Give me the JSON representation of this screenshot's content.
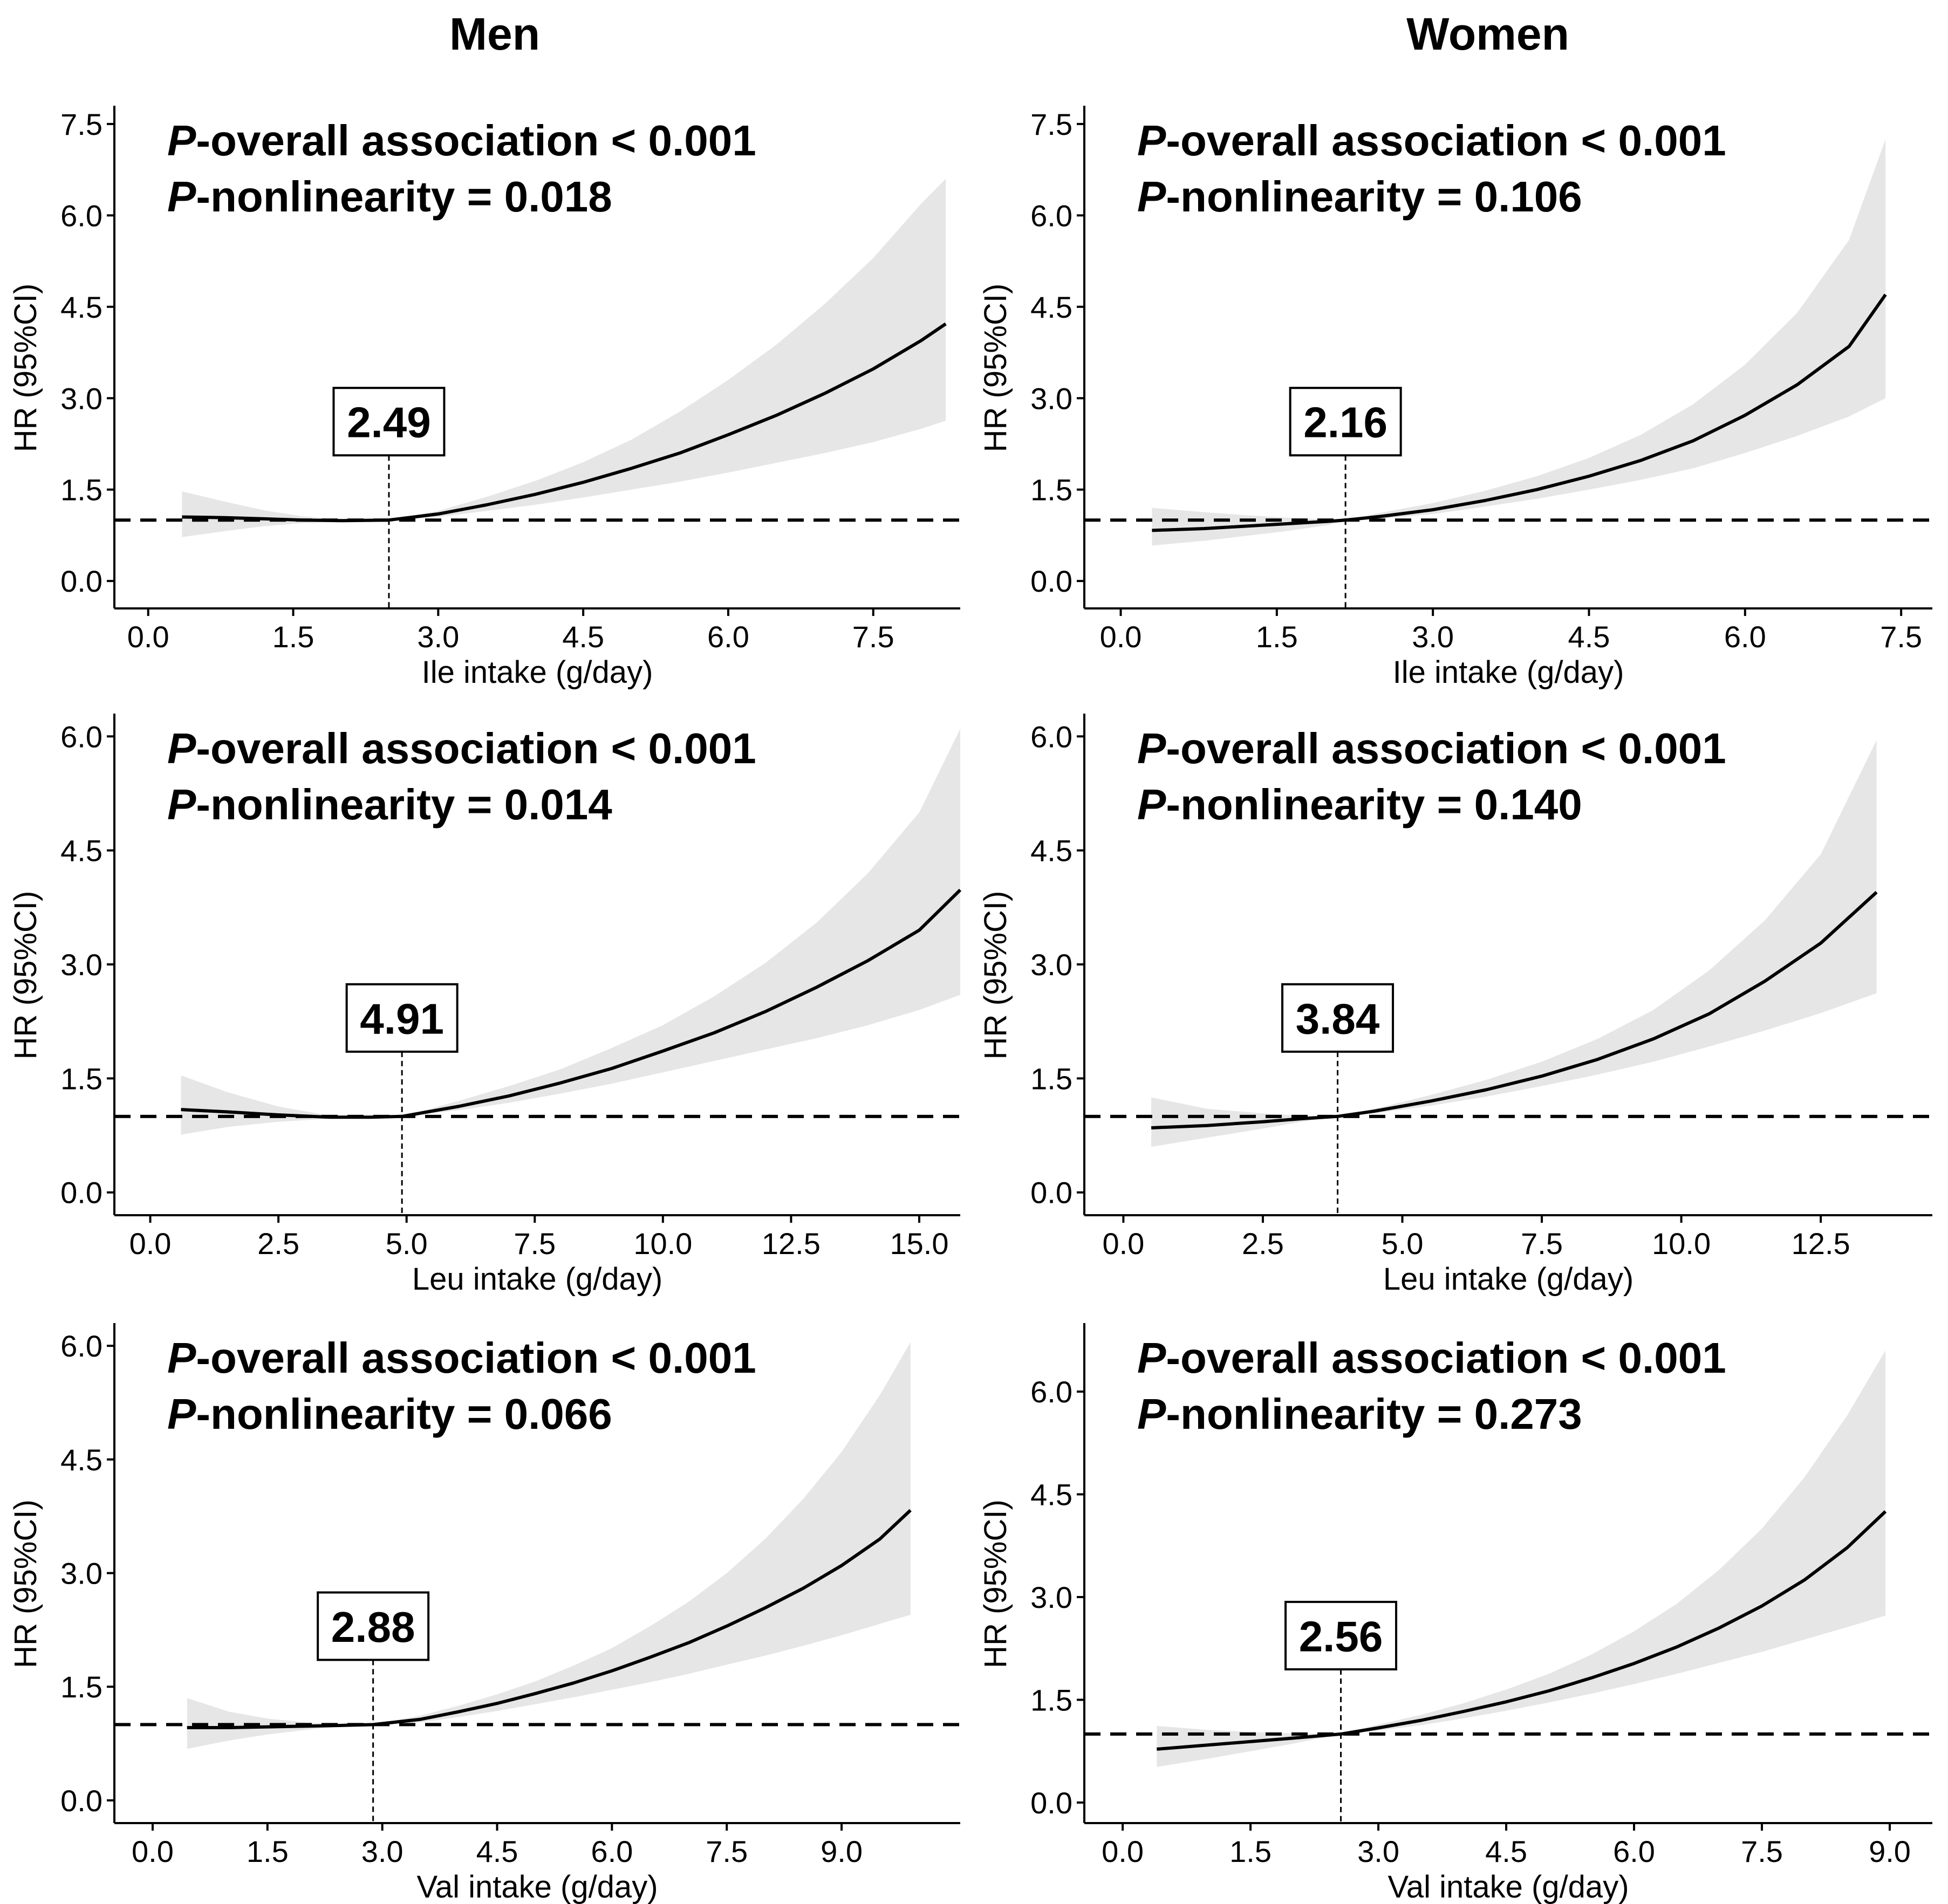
{
  "titles": {
    "left": "Men",
    "right": "Women"
  },
  "colors": {
    "band": "#e6e6e6",
    "line": "#000000",
    "axis": "#000000"
  },
  "chart_data": [
    {
      "type": "line",
      "panel": "men-ile",
      "column": "Men",
      "xlabel": "Ile intake (g/day)",
      "ylabel": "HR (95%CI)",
      "xlim": [
        -0.35,
        8.4
      ],
      "ylim": [
        -0.45,
        7.8
      ],
      "xticks": [
        0,
        1.5,
        3,
        4.5,
        6,
        7.5
      ],
      "yticks": [
        0,
        1.5,
        3,
        4.5,
        6,
        7.5
      ],
      "reference_hr": 1.0,
      "knot": {
        "x": 2.49,
        "label": "2.49"
      },
      "stat_prefix": "P",
      "stat_line1": "-overall association < 0.001",
      "stat_line2": "-nonlinearity = 0.018",
      "series": [
        {
          "name": "HR",
          "x": [
            0.35,
            0.8,
            1.2,
            1.6,
            2.0,
            2.49,
            3.0,
            3.5,
            4.0,
            4.5,
            5.0,
            5.5,
            6.0,
            6.5,
            7.0,
            7.5,
            8.0,
            8.25
          ],
          "y": [
            1.05,
            1.04,
            1.02,
            1.0,
            0.99,
            1.0,
            1.1,
            1.25,
            1.42,
            1.62,
            1.85,
            2.1,
            2.4,
            2.72,
            3.08,
            3.48,
            3.95,
            4.22
          ],
          "lower": [
            0.72,
            0.82,
            0.9,
            0.95,
            0.98,
            1.0,
            1.05,
            1.15,
            1.25,
            1.37,
            1.5,
            1.63,
            1.78,
            1.94,
            2.1,
            2.28,
            2.5,
            2.63
          ],
          "upper": [
            1.47,
            1.3,
            1.16,
            1.06,
            1.01,
            1.0,
            1.15,
            1.38,
            1.64,
            1.95,
            2.32,
            2.78,
            3.3,
            3.88,
            4.55,
            5.3,
            6.2,
            6.6
          ]
        }
      ]
    },
    {
      "type": "line",
      "panel": "women-ile",
      "column": "Women",
      "xlabel": "Ile intake (g/day)",
      "ylabel": "HR (95%CI)",
      "xlim": [
        -0.35,
        7.8
      ],
      "ylim": [
        -0.45,
        7.8
      ],
      "xticks": [
        0,
        1.5,
        3,
        4.5,
        6,
        7.5
      ],
      "yticks": [
        0,
        1.5,
        3,
        4.5,
        6,
        7.5
      ],
      "reference_hr": 1.0,
      "knot": {
        "x": 2.16,
        "label": "2.16"
      },
      "stat_prefix": "P",
      "stat_line1": "-overall association < 0.001",
      "stat_line2": "-nonlinearity = 0.106",
      "series": [
        {
          "name": "HR",
          "x": [
            0.3,
            0.8,
            1.2,
            1.6,
            2.0,
            2.16,
            2.5,
            3.0,
            3.5,
            4.0,
            4.5,
            5.0,
            5.5,
            6.0,
            6.5,
            7.0,
            7.35
          ],
          "y": [
            0.83,
            0.86,
            0.9,
            0.94,
            0.98,
            1.0,
            1.06,
            1.17,
            1.32,
            1.5,
            1.72,
            1.98,
            2.3,
            2.72,
            3.22,
            3.85,
            4.7
          ],
          "lower": [
            0.58,
            0.66,
            0.74,
            0.82,
            0.92,
            1.0,
            1.02,
            1.1,
            1.22,
            1.35,
            1.5,
            1.66,
            1.85,
            2.1,
            2.38,
            2.7,
            3.0
          ],
          "upper": [
            1.2,
            1.13,
            1.08,
            1.04,
            1.01,
            1.0,
            1.12,
            1.28,
            1.48,
            1.72,
            2.02,
            2.4,
            2.9,
            3.55,
            4.4,
            5.6,
            7.25
          ]
        }
      ]
    },
    {
      "type": "line",
      "panel": "men-leu",
      "column": "Men",
      "xlabel": "Leu intake (g/day)",
      "ylabel": "HR (95%CI)",
      "xlim": [
        -0.7,
        15.8
      ],
      "ylim": [
        -0.3,
        6.3
      ],
      "xticks": [
        0,
        2.5,
        5,
        7.5,
        10,
        12.5,
        15
      ],
      "yticks": [
        0,
        1.5,
        3,
        4.5,
        6
      ],
      "reference_hr": 1.0,
      "knot": {
        "x": 4.91,
        "label": "4.91"
      },
      "stat_prefix": "P",
      "stat_line1": "-overall association < 0.001",
      "stat_line2": "-nonlinearity = 0.014",
      "series": [
        {
          "name": "HR",
          "x": [
            0.6,
            1.5,
            2.5,
            3.5,
            4.3,
            4.91,
            6.0,
            7.0,
            8.0,
            9.0,
            10.0,
            11.0,
            12.0,
            13.0,
            14.0,
            15.0,
            15.8
          ],
          "y": [
            1.09,
            1.06,
            1.02,
            0.99,
            0.99,
            1.0,
            1.13,
            1.27,
            1.44,
            1.63,
            1.86,
            2.1,
            2.38,
            2.7,
            3.05,
            3.45,
            3.98
          ],
          "lower": [
            0.76,
            0.86,
            0.93,
            0.97,
            0.99,
            1.0,
            1.08,
            1.18,
            1.3,
            1.43,
            1.58,
            1.73,
            1.88,
            2.03,
            2.2,
            2.4,
            2.6
          ],
          "upper": [
            1.54,
            1.32,
            1.13,
            1.01,
            0.99,
            1.0,
            1.2,
            1.4,
            1.62,
            1.9,
            2.2,
            2.58,
            3.02,
            3.55,
            4.2,
            5.0,
            6.1
          ]
        }
      ]
    },
    {
      "type": "line",
      "panel": "women-leu",
      "column": "Women",
      "xlabel": "Leu intake (g/day)",
      "ylabel": "HR (95%CI)",
      "xlim": [
        -0.7,
        14.5
      ],
      "ylim": [
        -0.3,
        6.3
      ],
      "xticks": [
        0,
        2.5,
        5,
        7.5,
        10,
        12.5
      ],
      "yticks": [
        0,
        1.5,
        3,
        4.5,
        6
      ],
      "reference_hr": 1.0,
      "knot": {
        "x": 3.84,
        "label": "3.84"
      },
      "stat_prefix": "P",
      "stat_line1": "-overall association < 0.001",
      "stat_line2": "-nonlinearity = 0.140",
      "series": [
        {
          "name": "HR",
          "x": [
            0.5,
            1.5,
            2.5,
            3.2,
            3.84,
            4.5,
            5.5,
            6.5,
            7.5,
            8.5,
            9.5,
            10.5,
            11.5,
            12.5,
            13.5
          ],
          "y": [
            0.85,
            0.88,
            0.93,
            0.97,
            1.0,
            1.07,
            1.2,
            1.35,
            1.53,
            1.75,
            2.02,
            2.35,
            2.78,
            3.28,
            3.95
          ],
          "lower": [
            0.6,
            0.72,
            0.84,
            0.93,
            1.0,
            1.04,
            1.14,
            1.26,
            1.4,
            1.55,
            1.72,
            1.92,
            2.13,
            2.36,
            2.62
          ],
          "upper": [
            1.25,
            1.1,
            1.04,
            1.01,
            1.0,
            1.1,
            1.28,
            1.48,
            1.72,
            2.02,
            2.4,
            2.92,
            3.58,
            4.45,
            5.95
          ]
        }
      ]
    },
    {
      "type": "line",
      "panel": "men-val",
      "column": "Men",
      "xlabel": "Val intake (g/day)",
      "ylabel": "HR (95%CI)",
      "xlim": [
        -0.5,
        10.55
      ],
      "ylim": [
        -0.3,
        6.3
      ],
      "xticks": [
        0,
        1.5,
        3,
        4.5,
        6,
        7.5,
        9
      ],
      "yticks": [
        0,
        1.5,
        3,
        4.5,
        6
      ],
      "reference_hr": 1.0,
      "knot": {
        "x": 2.88,
        "label": "2.88"
      },
      "stat_prefix": "P",
      "stat_line1": "-overall association < 0.001",
      "stat_line2": "-nonlinearity = 0.066",
      "series": [
        {
          "name": "HR",
          "x": [
            0.45,
            1.0,
            1.5,
            2.0,
            2.5,
            2.88,
            3.5,
            4.0,
            4.5,
            5.0,
            5.5,
            6.0,
            6.5,
            7.0,
            7.5,
            8.0,
            8.5,
            9.0,
            9.5,
            9.9
          ],
          "y": [
            0.96,
            0.96,
            0.97,
            0.98,
            0.99,
            1.0,
            1.07,
            1.17,
            1.28,
            1.41,
            1.55,
            1.71,
            1.89,
            2.08,
            2.3,
            2.54,
            2.8,
            3.1,
            3.45,
            3.83
          ],
          "lower": [
            0.68,
            0.79,
            0.87,
            0.93,
            0.98,
            1.0,
            1.03,
            1.1,
            1.18,
            1.27,
            1.36,
            1.46,
            1.56,
            1.67,
            1.79,
            1.91,
            2.04,
            2.18,
            2.33,
            2.45
          ],
          "upper": [
            1.35,
            1.17,
            1.08,
            1.03,
            1.0,
            1.0,
            1.12,
            1.25,
            1.4,
            1.57,
            1.78,
            2.01,
            2.3,
            2.62,
            3.0,
            3.45,
            3.98,
            4.6,
            5.35,
            6.05
          ]
        }
      ]
    },
    {
      "type": "line",
      "panel": "women-val",
      "column": "Women",
      "xlabel": "Val intake (g/day)",
      "ylabel": "HR (95%CI)",
      "xlim": [
        -0.45,
        9.5
      ],
      "ylim": [
        -0.3,
        7.0
      ],
      "xticks": [
        0,
        1.5,
        3,
        4.5,
        6,
        7.5,
        9
      ],
      "yticks": [
        0,
        1.5,
        3,
        4.5,
        6
      ],
      "reference_hr": 1.0,
      "knot": {
        "x": 2.56,
        "label": "2.56"
      },
      "stat_prefix": "P",
      "stat_line1": "-overall association < 0.001",
      "stat_line2": "-nonlinearity = 0.273",
      "series": [
        {
          "name": "HR",
          "x": [
            0.4,
            1.0,
            1.5,
            2.0,
            2.56,
            3.0,
            3.5,
            4.0,
            4.5,
            5.0,
            5.5,
            6.0,
            6.5,
            7.0,
            7.5,
            8.0,
            8.5,
            8.95
          ],
          "y": [
            0.78,
            0.84,
            0.89,
            0.94,
            1.0,
            1.09,
            1.2,
            1.33,
            1.47,
            1.63,
            1.82,
            2.03,
            2.27,
            2.55,
            2.87,
            3.25,
            3.72,
            4.25
          ],
          "lower": [
            0.52,
            0.64,
            0.75,
            0.86,
            1.0,
            1.05,
            1.13,
            1.23,
            1.34,
            1.46,
            1.59,
            1.73,
            1.88,
            2.04,
            2.2,
            2.38,
            2.56,
            2.73
          ],
          "upper": [
            1.12,
            1.06,
            1.03,
            1.01,
            1.0,
            1.14,
            1.28,
            1.45,
            1.65,
            1.88,
            2.16,
            2.5,
            2.9,
            3.4,
            4.0,
            4.75,
            5.65,
            6.6
          ]
        }
      ]
    }
  ]
}
